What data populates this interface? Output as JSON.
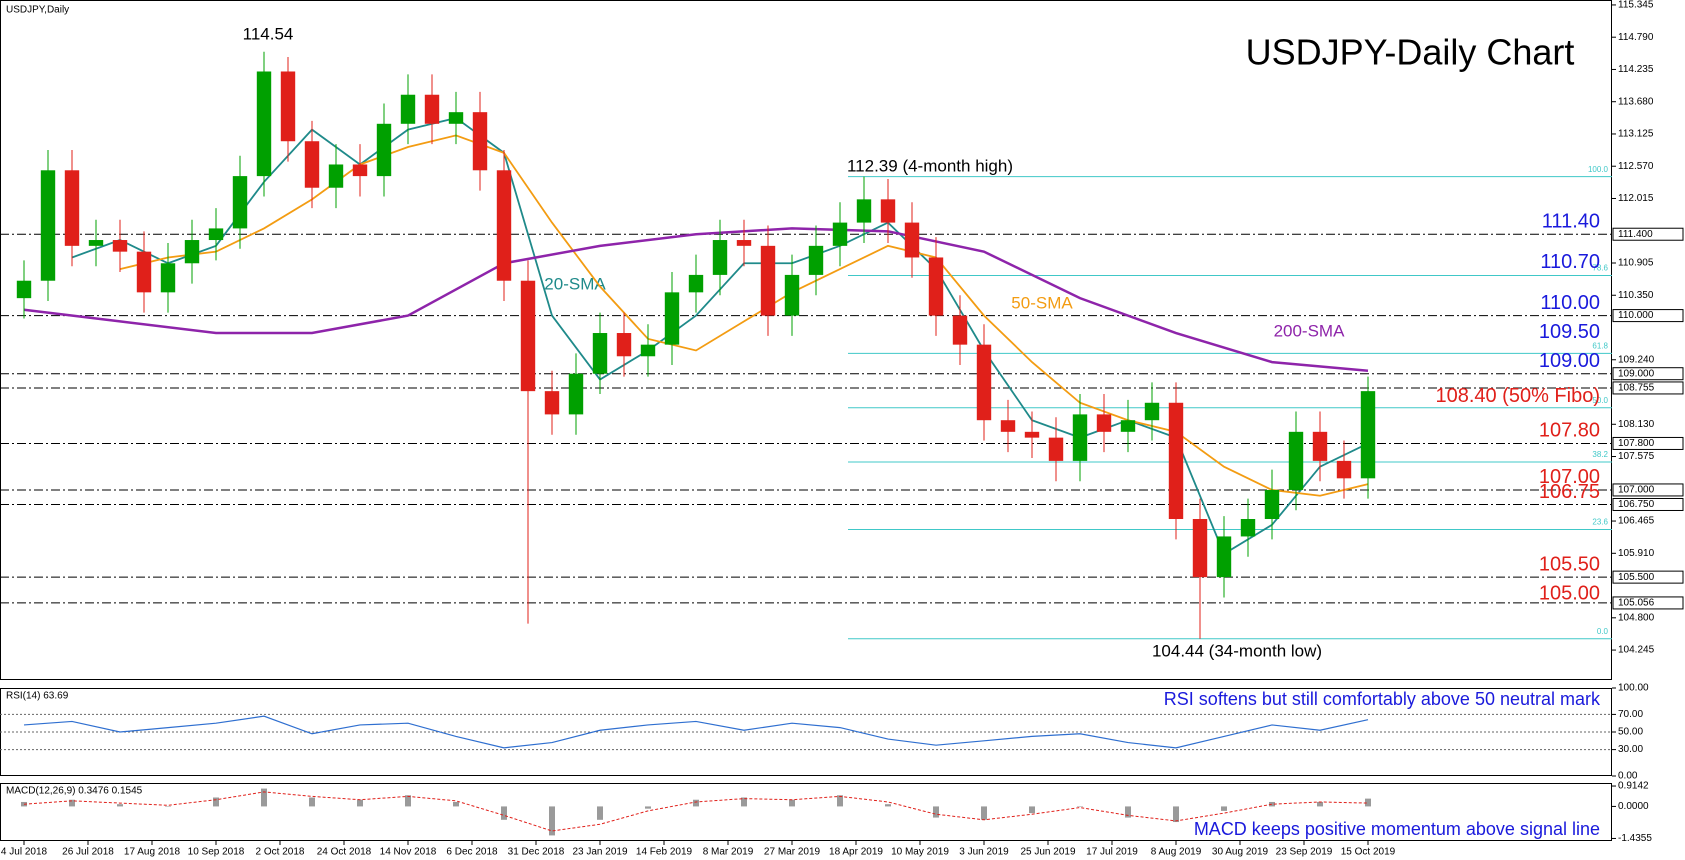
{
  "chart_data": [
    {
      "type": "candlestick",
      "title": "USDJPY-Daily Chart",
      "symbol_label": "USDJPY,Daily",
      "x": [
        0,
        6,
        12,
        18,
        24,
        30,
        36,
        42,
        48,
        54,
        60,
        66,
        72,
        78,
        84,
        90,
        96,
        102,
        108,
        114,
        120,
        126,
        132,
        138,
        144,
        150,
        156,
        162,
        168,
        174,
        180,
        186,
        192,
        198,
        204,
        210,
        216,
        222,
        228,
        234,
        240,
        246,
        252,
        258,
        264,
        270,
        276,
        282,
        288,
        294,
        300,
        306,
        312,
        318,
        324,
        330,
        336
      ],
      "open": [
        110.3,
        110.6,
        112.5,
        111.2,
        111.3,
        111.1,
        110.4,
        110.9,
        111.3,
        111.5,
        112.4,
        114.2,
        113.0,
        112.2,
        112.6,
        112.4,
        113.3,
        113.8,
        113.3,
        113.5,
        112.5,
        110.6,
        108.7,
        108.3,
        109.0,
        109.7,
        109.3,
        109.5,
        110.4,
        110.7,
        111.3,
        111.2,
        110.0,
        110.7,
        111.2,
        111.6,
        112.0,
        111.6,
        111.0,
        110.0,
        109.5,
        108.2,
        108.0,
        107.9,
        107.5,
        108.3,
        108.0,
        108.2,
        108.5,
        106.5,
        105.5,
        106.2,
        106.5,
        107.0,
        108.0,
        107.5,
        107.2
      ],
      "high": [
        110.95,
        112.85,
        112.85,
        111.65,
        111.65,
        111.45,
        111.25,
        111.65,
        111.85,
        112.75,
        114.54,
        114.45,
        113.35,
        112.95,
        112.95,
        113.65,
        114.15,
        114.15,
        113.85,
        113.85,
        112.85,
        110.95,
        109.05,
        109.35,
        110.05,
        110.05,
        109.85,
        110.75,
        111.05,
        111.65,
        111.65,
        111.55,
        111.05,
        111.55,
        111.95,
        112.39,
        112.35,
        111.95,
        111.35,
        110.35,
        109.85,
        108.55,
        108.35,
        108.25,
        108.65,
        108.65,
        108.55,
        108.85,
        108.85,
        106.85,
        106.55,
        106.85,
        107.35,
        108.35,
        108.35,
        107.85,
        108.95
      ],
      "low": [
        109.95,
        110.25,
        110.85,
        110.85,
        110.75,
        110.05,
        110.05,
        110.55,
        110.95,
        111.15,
        112.05,
        112.65,
        111.85,
        111.85,
        112.05,
        112.05,
        112.95,
        112.95,
        112.95,
        112.15,
        110.25,
        104.7,
        107.95,
        107.95,
        108.65,
        108.95,
        108.95,
        109.15,
        110.05,
        110.35,
        110.85,
        109.65,
        109.65,
        110.35,
        110.85,
        111.25,
        111.25,
        110.65,
        109.65,
        109.15,
        107.85,
        107.65,
        107.55,
        107.15,
        107.15,
        107.65,
        107.65,
        107.85,
        106.15,
        104.44,
        105.15,
        105.85,
        106.15,
        106.65,
        107.15,
        106.85,
        106.85
      ],
      "close": [
        110.6,
        112.5,
        111.2,
        111.3,
        111.1,
        110.4,
        110.9,
        111.3,
        111.5,
        112.4,
        114.2,
        113.0,
        112.2,
        112.6,
        112.4,
        113.3,
        113.8,
        113.3,
        113.5,
        112.5,
        110.6,
        108.7,
        108.3,
        109.0,
        109.7,
        109.3,
        109.5,
        110.4,
        110.7,
        111.3,
        111.2,
        110.0,
        110.7,
        111.2,
        111.6,
        112.0,
        111.6,
        111.0,
        110.0,
        109.5,
        108.2,
        108.0,
        107.9,
        107.5,
        108.3,
        108.0,
        108.2,
        108.5,
        106.5,
        105.5,
        106.2,
        106.5,
        107.0,
        108.0,
        107.5,
        107.2,
        108.7
      ],
      "up_color": "#00a000",
      "down_color": "#e0201a",
      "xlim": [
        -6,
        397
      ],
      "ylim": [
        103.73,
        115.43
      ],
      "xticks": [
        {
          "value": 0,
          "label": "4 Jul 2018"
        },
        {
          "value": 16,
          "label": "26 Jul 2018"
        },
        {
          "value": 32,
          "label": "17 Aug 2018"
        },
        {
          "value": 48,
          "label": "10 Sep 2018"
        },
        {
          "value": 64,
          "label": "2 Oct 2018"
        },
        {
          "value": 80,
          "label": "24 Oct 2018"
        },
        {
          "value": 96,
          "label": "14 Nov 2018"
        },
        {
          "value": 112,
          "label": "6 Dec 2018"
        },
        {
          "value": 128,
          "label": "31 Dec 2018"
        },
        {
          "value": 144,
          "label": "23 Jan 2019"
        },
        {
          "value": 160,
          "label": "14 Feb 2019"
        },
        {
          "value": 176,
          "label": "8 Mar 2019"
        },
        {
          "value": 192,
          "label": "27 Mar 2019"
        },
        {
          "value": 208,
          "label": "18 Apr 2019"
        },
        {
          "value": 224,
          "label": "10 May 2019"
        },
        {
          "value": 240,
          "label": "3 Jun 2019"
        },
        {
          "value": 256,
          "label": "25 Jun 2019"
        },
        {
          "value": 272,
          "label": "17 Jul 2019"
        },
        {
          "value": 288,
          "label": "8 Aug 2019"
        },
        {
          "value": 304,
          "label": "30 Aug 2019"
        },
        {
          "value": 320,
          "label": "23 Sep 2019"
        },
        {
          "value": 336,
          "label": "15 Oct 2019"
        }
      ],
      "yticks": [
        {
          "value": 115.345,
          "label": "115.345"
        },
        {
          "value": 114.79,
          "label": "114.790"
        },
        {
          "value": 114.235,
          "label": "114.235"
        },
        {
          "value": 113.68,
          "label": "113.680"
        },
        {
          "value": 113.125,
          "label": "113.125"
        },
        {
          "value": 112.57,
          "label": "112.570"
        },
        {
          "value": 112.015,
          "label": "112.015"
        },
        {
          "value": 110.905,
          "label": "110.905"
        },
        {
          "value": 110.35,
          "label": "110.350"
        },
        {
          "value": 109.24,
          "label": "109.240"
        },
        {
          "value": 108.13,
          "label": "108.130"
        },
        {
          "value": 107.575,
          "label": "107.575"
        },
        {
          "value": 106.465,
          "label": "106.465"
        },
        {
          "value": 105.91,
          "label": "105.910"
        },
        {
          "value": 104.8,
          "label": "104.800"
        },
        {
          "value": 104.245,
          "label": "104.245"
        }
      ],
      "overlays": [
        {
          "name": "20-SMA",
          "color": "#1f8a8a",
          "x": [
            12,
            24,
            36,
            48,
            60,
            72,
            84,
            96,
            108,
            120,
            132,
            144,
            156,
            168,
            180,
            192,
            204,
            216,
            228,
            240,
            252,
            264,
            276,
            288,
            300,
            312,
            324,
            336
          ],
          "values": [
            111.0,
            111.3,
            110.9,
            111.2,
            112.3,
            113.2,
            112.6,
            113.2,
            113.4,
            112.8,
            110.0,
            108.9,
            109.4,
            110.0,
            110.9,
            110.9,
            111.2,
            111.6,
            110.8,
            109.4,
            108.2,
            107.9,
            108.2,
            107.9,
            105.9,
            106.4,
            107.4,
            107.8
          ]
        },
        {
          "name": "50-SMA",
          "color": "#f39c12",
          "x": [
            24,
            36,
            48,
            60,
            72,
            84,
            96,
            108,
            120,
            132,
            144,
            156,
            168,
            180,
            192,
            204,
            216,
            228,
            240,
            252,
            264,
            276,
            288,
            300,
            312,
            324,
            336
          ],
          "values": [
            110.8,
            111.0,
            111.1,
            111.5,
            112.0,
            112.6,
            112.9,
            113.1,
            112.8,
            111.6,
            110.5,
            109.6,
            109.4,
            109.9,
            110.4,
            110.8,
            111.2,
            111.0,
            110.0,
            109.2,
            108.5,
            108.2,
            108.0,
            107.4,
            107.0,
            106.9,
            107.1
          ]
        },
        {
          "name": "200-SMA",
          "color": "#8e24aa",
          "x": [
            0,
            24,
            48,
            72,
            96,
            120,
            144,
            168,
            192,
            216,
            240,
            264,
            288,
            312,
            336
          ],
          "values": [
            110.1,
            109.9,
            109.7,
            109.7,
            110.0,
            110.9,
            111.2,
            111.4,
            111.5,
            111.45,
            111.1,
            110.3,
            109.7,
            109.2,
            109.05
          ]
        }
      ],
      "hlines": [
        {
          "value": 111.4,
          "label": "111.400"
        },
        {
          "value": 110.0,
          "label": "110.000"
        },
        {
          "value": 109.0,
          "label": "109.000"
        },
        {
          "value": 108.755,
          "label": "108.755"
        },
        {
          "value": 107.8,
          "label": "107.800"
        },
        {
          "value": 107.0,
          "label": "107.000"
        },
        {
          "value": 106.75,
          "label": "106.750"
        },
        {
          "value": 105.5,
          "label": "105.500"
        },
        {
          "value": 105.056,
          "label": "105.056"
        }
      ],
      "levels": [
        {
          "value": 111.4,
          "label": "111.40",
          "color": "#1a1adc"
        },
        {
          "value": 110.7,
          "label": "110.70",
          "color": "#1a1adc"
        },
        {
          "value": 110.0,
          "label": "110.00",
          "color": "#1a1adc"
        },
        {
          "value": 109.5,
          "label": "109.50",
          "color": "#1a1adc"
        },
        {
          "value": 109.0,
          "label": "109.00",
          "color": "#1a1adc"
        },
        {
          "value": 108.4,
          "label": "108.40 (50% Fibo)",
          "color": "#e0201a"
        },
        {
          "value": 107.8,
          "label": "107.80",
          "color": "#e0201a"
        },
        {
          "value": 107.0,
          "label": "107.00",
          "color": "#e0201a"
        },
        {
          "value": 106.75,
          "label": "106.75",
          "color": "#e0201a"
        },
        {
          "value": 105.5,
          "label": "105.50",
          "color": "#e0201a"
        },
        {
          "value": 105.0,
          "label": "105.00",
          "color": "#e0201a"
        }
      ],
      "fib_start": 206,
      "fib": [
        {
          "value": 112.39,
          "label": "100.0"
        },
        {
          "value": 110.69,
          "label": "78.6"
        },
        {
          "value": 109.35,
          "label": "61.8"
        },
        {
          "value": 108.415,
          "label": "50.0"
        },
        {
          "value": 107.48,
          "label": "38.2"
        },
        {
          "value": 106.32,
          "label": "23.6"
        },
        {
          "value": 104.44,
          "label": "0.0"
        }
      ],
      "fib_color": "#40c8c8",
      "annotations": [
        "114.54",
        "112.39 (4-month high)",
        "104.44 (34-month low)"
      ]
    },
    {
      "type": "line",
      "label": "RSI(14) 63.69",
      "annotation": "RSI softens but still comfortably above 50 neutral mark",
      "color": "#2f6fd0",
      "x": [
        0,
        12,
        24,
        36,
        48,
        60,
        72,
        84,
        96,
        108,
        120,
        132,
        144,
        156,
        168,
        180,
        192,
        204,
        216,
        228,
        240,
        252,
        264,
        276,
        288,
        300,
        312,
        324,
        336
      ],
      "values": [
        58,
        62,
        50,
        55,
        60,
        68,
        48,
        58,
        60,
        45,
        32,
        38,
        52,
        58,
        62,
        52,
        60,
        55,
        42,
        35,
        40,
        45,
        48,
        38,
        32,
        45,
        58,
        52,
        64
      ],
      "xlim": [
        -6,
        397
      ],
      "ylim": [
        0,
        100
      ],
      "yticks": [
        {
          "value": 100,
          "label": "100.00"
        },
        {
          "value": 70,
          "label": "70.00"
        },
        {
          "value": 50,
          "label": "50.00"
        },
        {
          "value": 30,
          "label": "30.00"
        },
        {
          "value": 0,
          "label": "0.00"
        }
      ]
    },
    {
      "type": "bar",
      "label": "MACD(12,26,9) 0.3476 0.1545",
      "annotation": "MACD keeps positive momentum above signal line",
      "color": "#9a9a9a",
      "x": [
        0,
        12,
        24,
        36,
        48,
        60,
        72,
        84,
        96,
        108,
        120,
        132,
        144,
        156,
        168,
        180,
        192,
        204,
        216,
        228,
        240,
        252,
        264,
        276,
        288,
        300,
        312,
        324,
        336
      ],
      "values": [
        0.2,
        0.3,
        0.1,
        0.0,
        0.4,
        0.8,
        0.4,
        0.3,
        0.5,
        0.2,
        -0.6,
        -1.3,
        -0.6,
        -0.1,
        0.3,
        0.4,
        0.3,
        0.5,
        0.1,
        -0.5,
        -0.6,
        -0.3,
        0.0,
        -0.5,
        -0.7,
        -0.2,
        0.2,
        0.2,
        0.35
      ],
      "signal": {
        "color": "#e0201a",
        "values": [
          0.1,
          0.25,
          0.15,
          0.05,
          0.3,
          0.65,
          0.45,
          0.3,
          0.45,
          0.25,
          -0.4,
          -1.1,
          -0.8,
          -0.2,
          0.2,
          0.35,
          0.3,
          0.45,
          0.2,
          -0.35,
          -0.6,
          -0.35,
          -0.05,
          -0.4,
          -0.65,
          -0.3,
          0.1,
          0.2,
          0.15
        ]
      },
      "xlim": [
        -6,
        397
      ],
      "ylim": [
        -1.55,
        1.05
      ],
      "yticks": [
        {
          "value": 0.9142,
          "label": "0.9142"
        },
        {
          "value": 0,
          "label": "0.0000"
        },
        {
          "value": -1.4355,
          "label": "-1.4355"
        }
      ]
    }
  ]
}
